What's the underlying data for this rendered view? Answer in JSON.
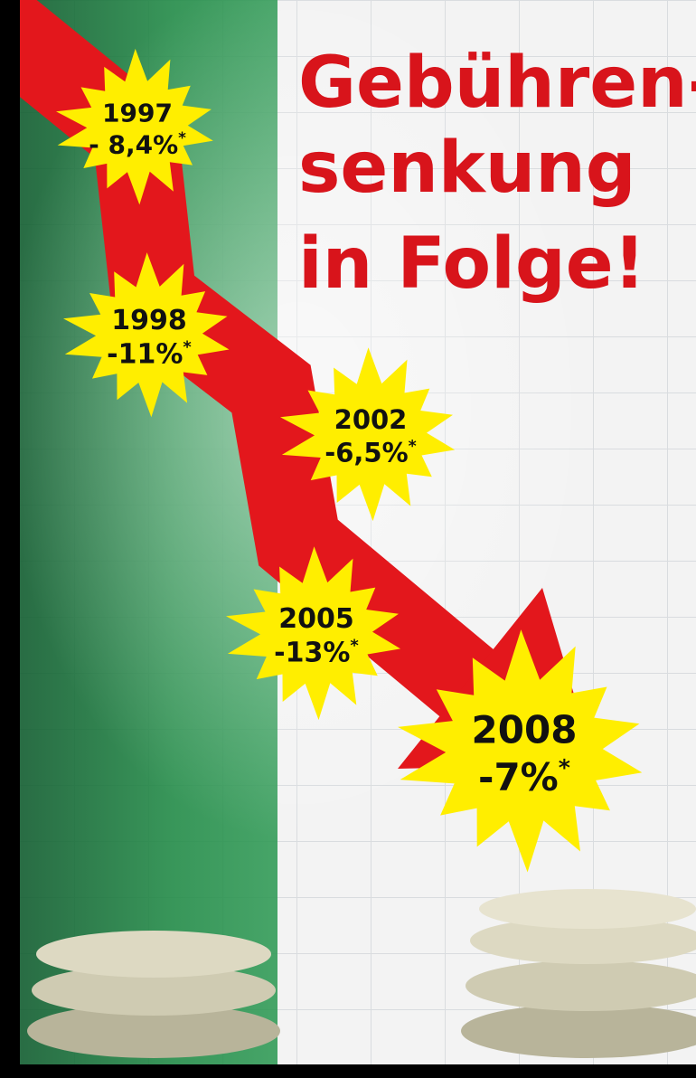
{
  "headline": {
    "lines": [
      "Gebühren-",
      "senkung",
      "in Folge!"
    ]
  },
  "bursts": [
    {
      "year": "1997",
      "label": "- 8,4%",
      "marker": "*"
    },
    {
      "year": "1998",
      "label": "-11%",
      "marker": "*"
    },
    {
      "year": "2002",
      "label": "-6,5%",
      "marker": "*"
    },
    {
      "year": "2005",
      "label": "-13%",
      "marker": "*"
    },
    {
      "year": "2008",
      "label": "-7%",
      "marker": "*"
    }
  ]
}
